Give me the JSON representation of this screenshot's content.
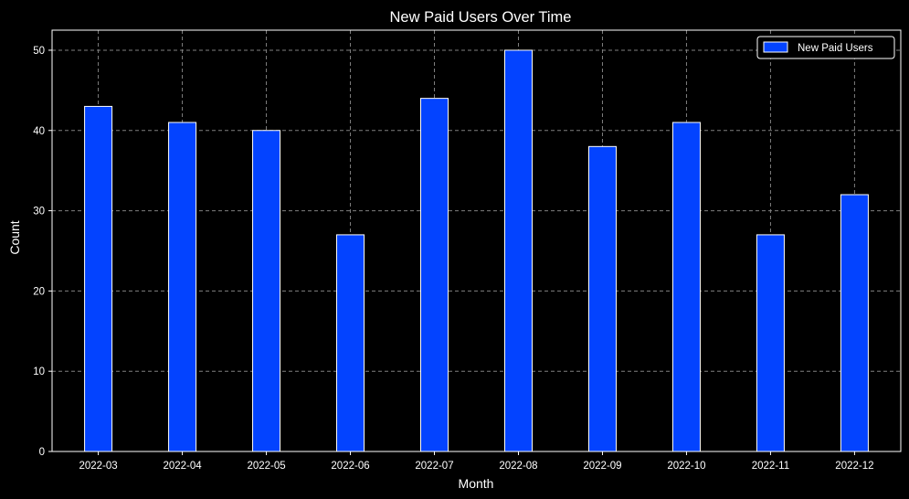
{
  "chart_data": {
    "type": "bar",
    "title": "New Paid Users Over Time",
    "xlabel": "Month",
    "ylabel": "Count",
    "categories": [
      "2022-03",
      "2022-04",
      "2022-05",
      "2022-06",
      "2022-07",
      "2022-08",
      "2022-09",
      "2022-10",
      "2022-11",
      "2022-12"
    ],
    "series": [
      {
        "name": "New Paid Users",
        "values": [
          43,
          41,
          40,
          27,
          44,
          50,
          38,
          41,
          27,
          32
        ]
      }
    ],
    "ylim": [
      0,
      52.5
    ],
    "yticks": [
      0,
      10,
      20,
      30,
      40,
      50
    ],
    "grid": true,
    "legend_position": "top-right",
    "colors": {
      "background": "#000000",
      "bar_fill": "#0343ff",
      "bar_edge": "#ffffff",
      "grid": "#808080",
      "text": "#ffffff",
      "axes": "#ffffff"
    }
  }
}
